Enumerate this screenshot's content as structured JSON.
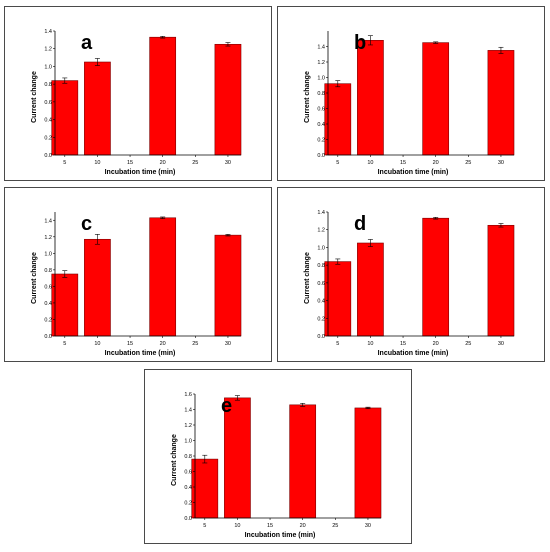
{
  "chart_data": [
    {
      "type": "bar",
      "panel_label": "a",
      "xlabel": "Incubation time (min)",
      "ylabel": "Current change",
      "xlim": [
        3.5,
        32
      ],
      "ylim": [
        0,
        1.4
      ],
      "x_ticks": [
        "5",
        "10",
        "15",
        "20",
        "25",
        "30"
      ],
      "y_ticks": [
        "0.0",
        "0.2",
        "0.4",
        "0.6",
        "0.8",
        "1.0",
        "1.2",
        "1.4"
      ],
      "bar_color": "#ff0000",
      "bars": [
        {
          "x": 5,
          "value": 0.84,
          "error": 0.03
        },
        {
          "x": 10,
          "value": 1.05,
          "error": 0.04
        },
        {
          "x": 20,
          "value": 1.33,
          "error": 0.01
        },
        {
          "x": 30,
          "value": 1.25,
          "error": 0.02
        }
      ]
    },
    {
      "type": "bar",
      "panel_label": "b",
      "xlabel": "Incubation time (min)",
      "ylabel": "Current change",
      "xlim": [
        3.5,
        32
      ],
      "ylim": [
        0,
        1.6
      ],
      "x_ticks": [
        "5",
        "10",
        "15",
        "20",
        "25",
        "30"
      ],
      "y_ticks": [
        "0.0",
        "0.2",
        "0.4",
        "0.6",
        "0.8",
        "1.0",
        "1.2",
        "1.4"
      ],
      "bar_color": "#ff0000",
      "bars": [
        {
          "x": 5,
          "value": 0.92,
          "error": 0.04
        },
        {
          "x": 10,
          "value": 1.48,
          "error": 0.06
        },
        {
          "x": 20,
          "value": 1.45,
          "error": 0.01
        },
        {
          "x": 30,
          "value": 1.35,
          "error": 0.04
        }
      ]
    },
    {
      "type": "bar",
      "panel_label": "c",
      "xlabel": "Incubation time (min)",
      "ylabel": "Current change",
      "xlim": [
        3.5,
        32
      ],
      "ylim": [
        0,
        1.5
      ],
      "x_ticks": [
        "5",
        "10",
        "15",
        "20",
        "25",
        "30"
      ],
      "y_ticks": [
        "0.0",
        "0.2",
        "0.4",
        "0.6",
        "0.8",
        "1.0",
        "1.2",
        "1.4"
      ],
      "bar_color": "#ff0000",
      "bars": [
        {
          "x": 5,
          "value": 0.75,
          "error": 0.04
        },
        {
          "x": 10,
          "value": 1.17,
          "error": 0.06
        },
        {
          "x": 20,
          "value": 1.43,
          "error": 0.01
        },
        {
          "x": 30,
          "value": 1.22,
          "error": 0.01
        }
      ]
    },
    {
      "type": "bar",
      "panel_label": "d",
      "xlabel": "Incubation time (min)",
      "ylabel": "Current change",
      "xlim": [
        3.5,
        32
      ],
      "ylim": [
        0,
        1.4
      ],
      "x_ticks": [
        "5",
        "10",
        "15",
        "20",
        "25",
        "30"
      ],
      "y_ticks": [
        "0.0",
        "0.2",
        "0.4",
        "0.6",
        "0.8",
        "1.0",
        "1.2",
        "1.4"
      ],
      "bar_color": "#ff0000",
      "bars": [
        {
          "x": 5,
          "value": 0.84,
          "error": 0.03
        },
        {
          "x": 10,
          "value": 1.05,
          "error": 0.04
        },
        {
          "x": 20,
          "value": 1.33,
          "error": 0.01
        },
        {
          "x": 30,
          "value": 1.25,
          "error": 0.02
        }
      ]
    },
    {
      "type": "bar",
      "panel_label": "e",
      "xlabel": "Incubation time (min)",
      "ylabel": "Current change",
      "xlim": [
        3.5,
        32
      ],
      "ylim": [
        0,
        1.6
      ],
      "x_ticks": [
        "5",
        "10",
        "15",
        "20",
        "25",
        "30"
      ],
      "y_ticks": [
        "0.0",
        "0.2",
        "0.4",
        "0.6",
        "0.8",
        "1.0",
        "1.2",
        "1.4",
        "1.6"
      ],
      "bar_color": "#ff0000",
      "bars": [
        {
          "x": 5,
          "value": 0.76,
          "error": 0.05
        },
        {
          "x": 10,
          "value": 1.55,
          "error": 0.03
        },
        {
          "x": 20,
          "value": 1.46,
          "error": 0.02
        },
        {
          "x": 30,
          "value": 1.42,
          "error": 0.01
        }
      ]
    }
  ]
}
